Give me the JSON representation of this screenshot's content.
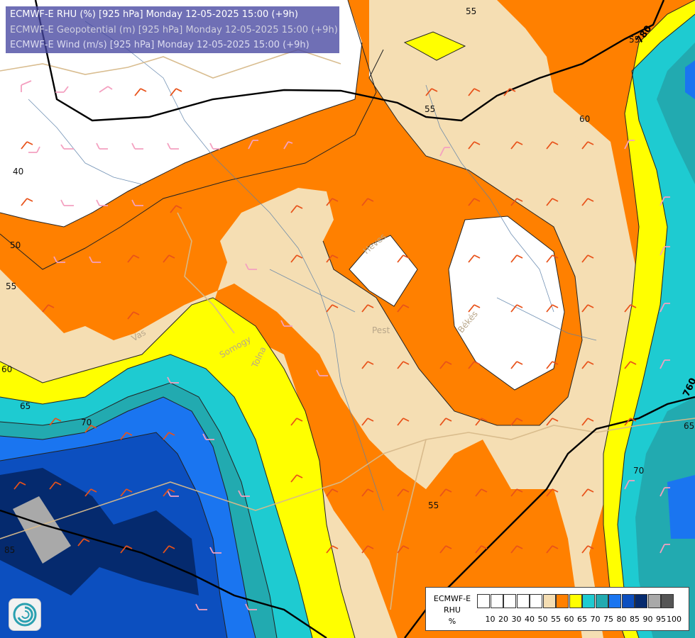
{
  "header": {
    "line1": "ECMWF-E RHU (%) [925 hPa] Monday 12-05-2025 15:00 (+9h)",
    "line2": "ECMWF-E Geopotential (m) [925 hPa] Monday 12-05-2025 15:00 (+9h)",
    "line3": "ECMWF-E Wind (m/s) [925 hPa] Monday 12-05-2025 15:00 (+9h)"
  },
  "contours": {
    "rhu_labels": [
      "55",
      "55",
      "60",
      "40",
      "50",
      "55",
      "60",
      "65",
      "70",
      "55",
      "85",
      "65",
      "70",
      "55"
    ],
    "geopotential_labels": [
      "780",
      "760"
    ]
  },
  "place_names": [
    "Heves",
    "Pest",
    "Békés",
    "Somogy",
    "Tolna",
    "Vas"
  ],
  "legend": {
    "title_lines": [
      "ECMWF-E",
      "RHU",
      "%"
    ],
    "ticks": [
      "10",
      "20",
      "30",
      "40",
      "50",
      "55",
      "60",
      "65",
      "70",
      "75",
      "80",
      "85",
      "90",
      "95",
      "100"
    ],
    "colors": [
      "#ffffff",
      "#ffffff",
      "#ffffff",
      "#ffffff",
      "#ffffff",
      "#f5deb3",
      "#ff8000",
      "#ffff00",
      "#1ecbd1",
      "#22aab0",
      "#1a75f0",
      "#0c4fbf",
      "#052a6e",
      "#a9a9a9",
      "#555555"
    ]
  },
  "logo": {
    "icon": "ecmwf-logo-icon"
  }
}
